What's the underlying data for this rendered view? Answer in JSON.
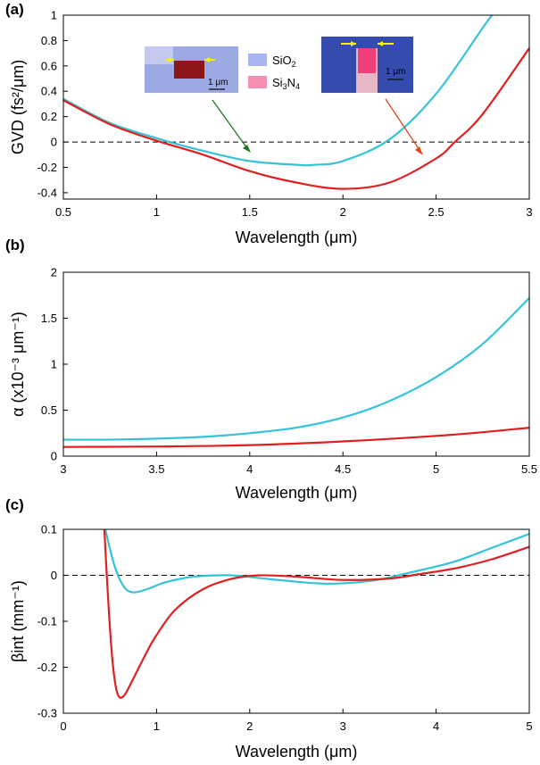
{
  "chart_data": [
    {
      "type": "line",
      "panel_label": "(a)",
      "xlabel": "Wavelength (μm)",
      "ylabel": "GVD (fs²/μm)",
      "xlim": [
        0.5,
        3.0
      ],
      "ylim": [
        -0.45,
        1.0
      ],
      "x_ticks": [
        "0.5",
        "1",
        "1.5",
        "2",
        "2.5",
        "3"
      ],
      "y_ticks": [
        "-0.4",
        "-0.2",
        "0",
        "0.2",
        "0.4",
        "0.6",
        "0.8",
        "1"
      ],
      "legend": [
        {
          "label": "SiO2",
          "color": "#a8b4f0"
        },
        {
          "label": "Si3N4",
          "color": "#f48fb1"
        }
      ],
      "inset_scale_label": "1 μm",
      "reference_line": 0,
      "series": [
        {
          "color": "#36c3d9",
          "x": [
            0.5,
            0.75,
            1.0,
            1.25,
            1.5,
            1.75,
            1.85,
            2.0,
            2.25,
            2.5,
            2.75,
            2.8
          ],
          "y": [
            0.34,
            0.15,
            0.03,
            -0.07,
            -0.15,
            -0.18,
            -0.18,
            -0.15,
            0.02,
            0.38,
            0.9,
            1.0
          ]
        },
        {
          "color": "#e01f1f",
          "x": [
            0.5,
            0.75,
            1.0,
            1.25,
            1.5,
            1.75,
            2.0,
            2.25,
            2.5,
            2.6,
            2.75,
            3.0
          ],
          "y": [
            0.33,
            0.14,
            0.01,
            -0.1,
            -0.23,
            -0.32,
            -0.37,
            -0.32,
            -0.13,
            0.0,
            0.22,
            0.74
          ]
        }
      ]
    },
    {
      "type": "line",
      "panel_label": "(b)",
      "xlabel": "Wavelength (μm)",
      "ylabel": "α (x10⁻³ μm⁻¹)",
      "xlim": [
        3.0,
        5.5
      ],
      "ylim": [
        0,
        2.0
      ],
      "x_ticks": [
        "3",
        "3.5",
        "4",
        "4.5",
        "5",
        "5.5"
      ],
      "y_ticks": [
        "0",
        "0.5",
        "1",
        "1.5",
        "2"
      ],
      "series": [
        {
          "color": "#36c3d9",
          "x": [
            3.0,
            3.25,
            3.5,
            3.75,
            4.0,
            4.25,
            4.5,
            4.75,
            5.0,
            5.25,
            5.5
          ],
          "y": [
            0.18,
            0.18,
            0.19,
            0.21,
            0.25,
            0.31,
            0.42,
            0.6,
            0.86,
            1.22,
            1.72
          ]
        },
        {
          "color": "#e01f1f",
          "x": [
            3.0,
            3.5,
            4.0,
            4.5,
            5.0,
            5.25,
            5.5
          ],
          "y": [
            0.1,
            0.105,
            0.12,
            0.16,
            0.22,
            0.26,
            0.31
          ]
        }
      ]
    },
    {
      "type": "line",
      "panel_label": "(c)",
      "xlabel": "Wavelength (μm)",
      "ylabel": "βint (mm⁻¹)",
      "xlim": [
        0,
        5
      ],
      "ylim": [
        -0.3,
        0.1
      ],
      "x_ticks": [
        "0",
        "1",
        "2",
        "3",
        "4",
        "5"
      ],
      "y_ticks": [
        "-0.3",
        "-0.2",
        "-0.1",
        "0",
        "0.1"
      ],
      "reference_line": 0,
      "series": [
        {
          "color": "#36c3d9",
          "x": [
            0.45,
            0.55,
            0.65,
            0.75,
            0.9,
            1.1,
            1.4,
            1.8,
            2.2,
            2.8,
            3.3,
            3.7,
            4.2,
            4.6,
            5.0
          ],
          "y": [
            0.1,
            0.02,
            -0.025,
            -0.037,
            -0.03,
            -0.015,
            -0.003,
            0.0,
            -0.008,
            -0.018,
            -0.012,
            0.005,
            0.03,
            0.06,
            0.09
          ]
        },
        {
          "color": "#e01f1f",
          "x": [
            0.44,
            0.48,
            0.52,
            0.56,
            0.6,
            0.65,
            0.7,
            0.8,
            0.9,
            1.0,
            1.2,
            1.5,
            1.8,
            2.1,
            2.5,
            3.0,
            3.5,
            3.8,
            4.2,
            4.6,
            5.0
          ],
          "y": [
            0.1,
            -0.05,
            -0.17,
            -0.24,
            -0.265,
            -0.262,
            -0.245,
            -0.205,
            -0.165,
            -0.13,
            -0.075,
            -0.03,
            -0.008,
            0.0,
            -0.003,
            -0.01,
            -0.007,
            0.002,
            0.015,
            0.035,
            0.062
          ]
        }
      ]
    }
  ]
}
